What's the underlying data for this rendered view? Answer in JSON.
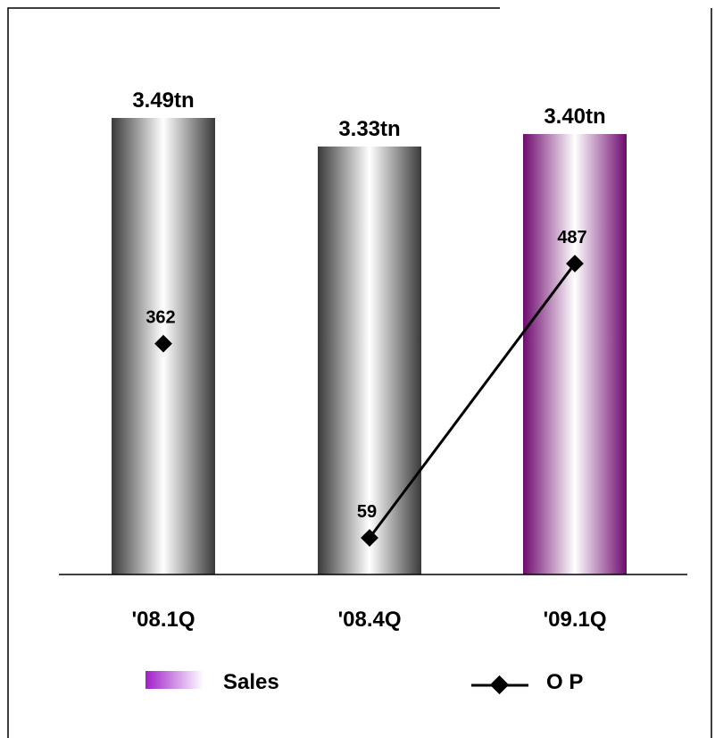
{
  "chart_data": {
    "type": "bar",
    "categories": [
      "'08.1Q",
      "'08.4Q",
      "'09.1Q"
    ],
    "series": [
      {
        "name": "Sales",
        "type": "bar",
        "values": [
          3.49,
          3.33,
          3.4
        ],
        "labels": [
          "3.49tn",
          "3.33tn",
          "3.40tn"
        ],
        "highlight_index": 2
      },
      {
        "name": "O P",
        "type": "line",
        "values": [
          362,
          59,
          487
        ],
        "labels": [
          "362",
          "59",
          "487"
        ],
        "connected_from_index": 1
      }
    ],
    "colors": {
      "bar_gray_dark": "#3a3a3a",
      "bar_gray_light": "#ffffff",
      "bar_purple_dark": "#6e0a6e",
      "bar_purple_light": "#ffffff",
      "line": "#000000"
    },
    "legend": {
      "position": "bottom"
    }
  }
}
